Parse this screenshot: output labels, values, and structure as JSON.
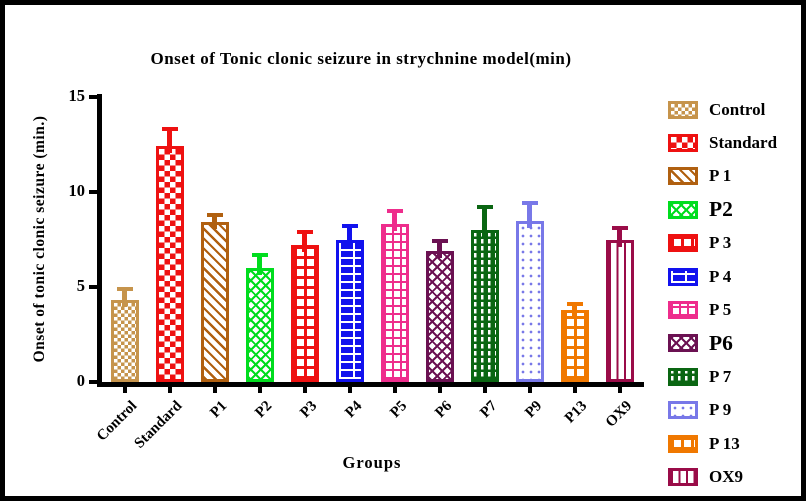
{
  "chart_data": {
    "type": "bar",
    "title": "Onset of Tonic clonic seizure in strychnine model(min)",
    "xlabel": "Groups",
    "ylabel": "Onset of tonic clonic seizure (min.)",
    "ylim": [
      0,
      15
    ],
    "yticks": [
      0,
      5,
      10,
      15
    ],
    "grid": false,
    "legend_position": "right",
    "error_bars": "upper SEM whiskers, same color as bar",
    "categories": [
      "Control",
      "Standard",
      "P1",
      "P2",
      "P3",
      "P4",
      "P5",
      "P6",
      "P7",
      "P9",
      "P13",
      "OX9"
    ],
    "values": [
      4.3,
      12.4,
      8.4,
      6.0,
      7.2,
      7.5,
      8.3,
      6.9,
      8.0,
      8.5,
      3.8,
      7.5
    ],
    "errors": [
      0.6,
      0.9,
      0.4,
      0.7,
      0.7,
      0.7,
      0.7,
      0.5,
      1.2,
      0.9,
      0.3,
      0.6
    ],
    "groups": [
      {
        "label": "Control",
        "legend_label": "Control",
        "value": 4.3,
        "error": 0.6,
        "color": "#C6944C",
        "pattern": "checker-fine",
        "large_legend": false
      },
      {
        "label": "Standard",
        "legend_label": "Standard",
        "value": 12.4,
        "error": 0.9,
        "color": "#EE1111",
        "pattern": "checker",
        "large_legend": false
      },
      {
        "label": "P1",
        "legend_label": "P 1",
        "value": 8.4,
        "error": 0.4,
        "color": "#B06010",
        "pattern": "diagonal-stripes",
        "large_legend": false
      },
      {
        "label": "P2",
        "legend_label": "P2",
        "value": 6.0,
        "error": 0.7,
        "color": "#00DD1E",
        "pattern": "crosshatch",
        "large_legend": true
      },
      {
        "label": "P3",
        "legend_label": "P 3",
        "value": 7.2,
        "error": 0.7,
        "color": "#EE1111",
        "pattern": "grid-thick",
        "large_legend": false
      },
      {
        "label": "P4",
        "legend_label": "P 4",
        "value": 7.5,
        "error": 0.7,
        "color": "#1212EE",
        "pattern": "brick",
        "large_legend": false
      },
      {
        "label": "P5",
        "legend_label": "P 5",
        "value": 8.3,
        "error": 0.7,
        "color": "#EE2D8C",
        "pattern": "grid-thin",
        "large_legend": false
      },
      {
        "label": "P6",
        "legend_label": "P6",
        "value": 6.9,
        "error": 0.5,
        "color": "#6B1152",
        "pattern": "crosshatch",
        "large_legend": true
      },
      {
        "label": "P7",
        "legend_label": "P 7",
        "value": 8.0,
        "error": 1.2,
        "color": "#0A6612",
        "pattern": "dash-rows",
        "large_legend": false
      },
      {
        "label": "P9",
        "legend_label": "P 9",
        "value": 8.5,
        "error": 0.9,
        "color": "#7878E8",
        "pattern": "dots",
        "large_legend": false
      },
      {
        "label": "P13",
        "legend_label": "P 13",
        "value": 3.8,
        "error": 0.3,
        "color": "#F07800",
        "pattern": "grid-thick",
        "large_legend": false
      },
      {
        "label": "OX9",
        "legend_label": "OX9",
        "value": 7.5,
        "error": 0.6,
        "color": "#9A0C48",
        "pattern": "vertical-lines",
        "large_legend": false
      }
    ]
  }
}
